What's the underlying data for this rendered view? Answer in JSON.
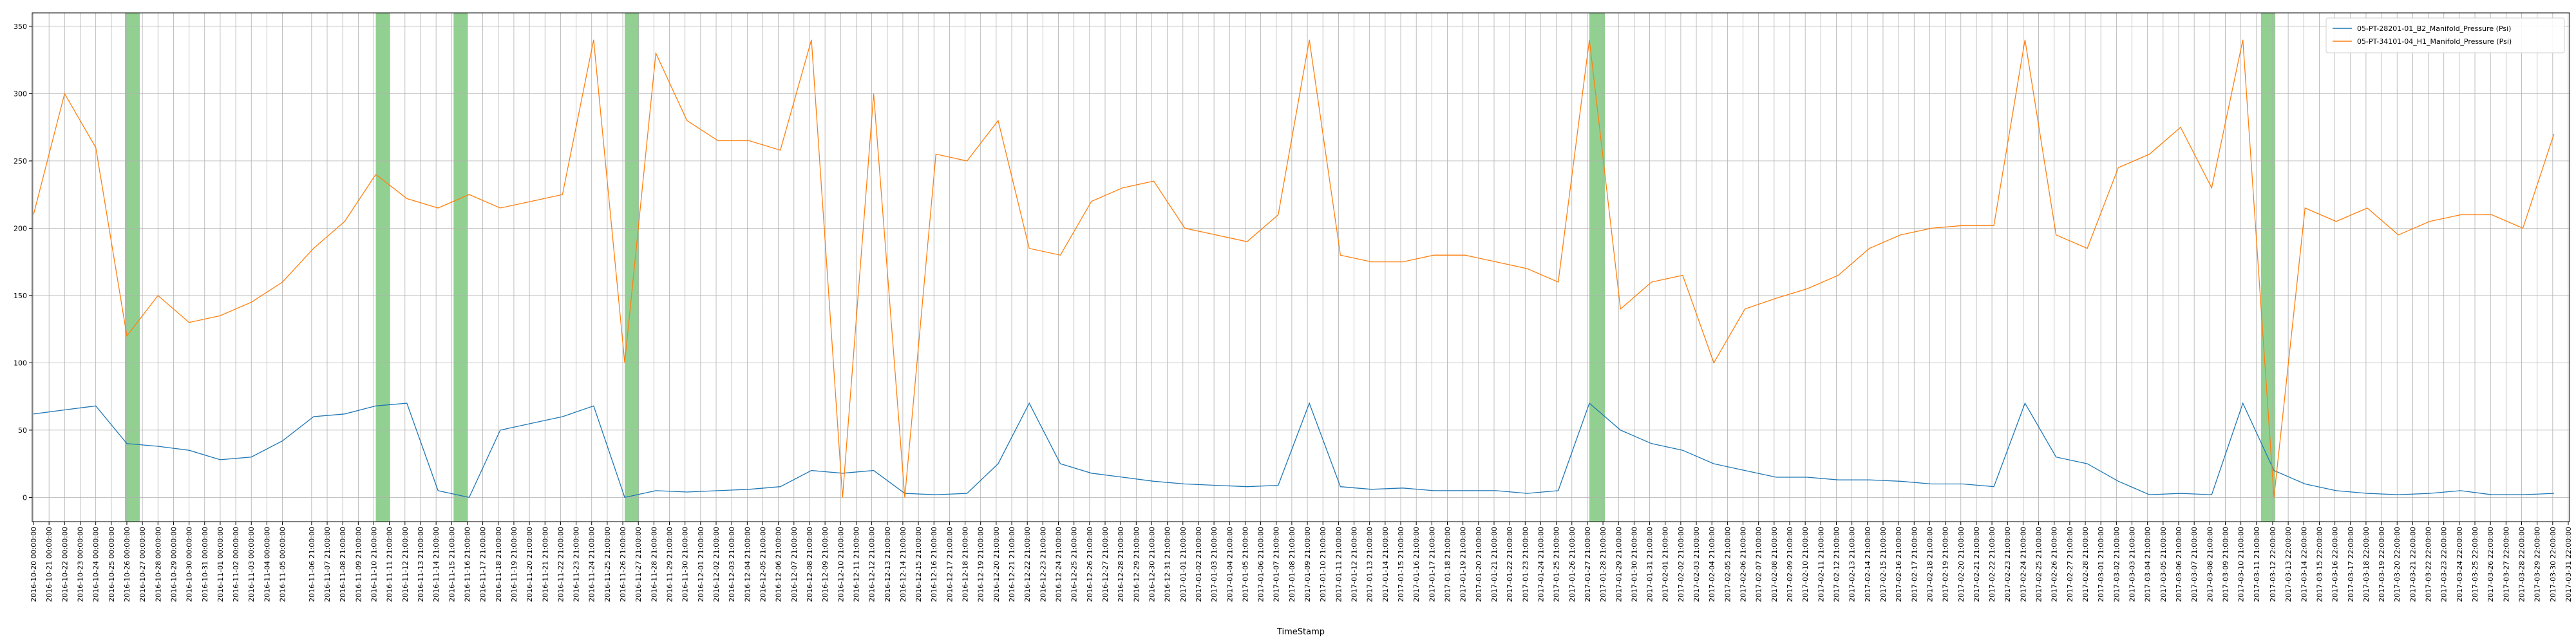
{
  "chart_data": {
    "type": "line",
    "xlabel": "TimeStamp",
    "x": [
      "2016-10-20",
      "2016-10-22",
      "2016-10-24",
      "2016-10-26",
      "2016-10-28",
      "2016-10-30",
      "2016-11-01",
      "2016-11-03",
      "2016-11-05",
      "2016-11-07",
      "2016-11-09",
      "2016-11-11",
      "2016-11-13",
      "2016-11-15",
      "2016-11-17",
      "2016-11-19",
      "2016-11-21",
      "2016-11-23",
      "2016-11-25",
      "2016-11-27",
      "2016-11-29",
      "2016-12-01",
      "2016-12-03",
      "2016-12-05",
      "2016-12-07",
      "2016-12-09",
      "2016-12-11",
      "2016-12-13",
      "2016-12-15",
      "2016-12-17",
      "2016-12-19",
      "2016-12-21",
      "2016-12-23",
      "2016-12-25",
      "2016-12-27",
      "2016-12-29",
      "2016-12-31",
      "2017-01-02",
      "2017-01-04",
      "2017-01-06",
      "2017-01-08",
      "2017-01-10",
      "2017-01-12",
      "2017-01-14",
      "2017-01-16",
      "2017-01-18",
      "2017-01-20",
      "2017-01-22",
      "2017-01-24",
      "2017-01-26",
      "2017-01-28",
      "2017-01-30",
      "2017-02-01",
      "2017-02-03",
      "2017-02-05",
      "2017-02-07",
      "2017-02-09",
      "2017-02-11",
      "2017-02-13",
      "2017-02-15",
      "2017-02-17",
      "2017-02-19",
      "2017-02-21",
      "2017-02-23",
      "2017-02-25",
      "2017-02-27",
      "2017-03-01",
      "2017-03-03",
      "2017-03-05",
      "2017-03-07",
      "2017-03-09",
      "2017-03-11",
      "2017-03-13",
      "2017-03-15",
      "2017-03-17",
      "2017-03-19",
      "2017-03-21",
      "2017-03-23",
      "2017-03-25",
      "2017-03-27",
      "2017-03-29",
      "2017-03-31"
    ],
    "series": [
      {
        "name": "05-PT-28201-01_B2_Manifold_Pressure (Psi)",
        "color": "#1f77b4",
        "values": [
          62,
          65,
          68,
          40,
          38,
          35,
          28,
          30,
          42,
          60,
          62,
          68,
          70,
          5,
          0,
          50,
          55,
          60,
          68,
          0,
          5,
          4,
          5,
          6,
          8,
          20,
          18,
          20,
          3,
          2,
          3,
          25,
          70,
          25,
          18,
          15,
          12,
          10,
          9,
          8,
          9,
          70,
          8,
          6,
          7,
          5,
          5,
          5,
          3,
          5,
          70,
          50,
          40,
          35,
          25,
          20,
          15,
          15,
          13,
          13,
          12,
          10,
          10,
          8,
          70,
          30,
          25,
          12,
          2,
          3,
          2,
          70,
          20,
          10,
          5,
          3,
          2,
          3,
          5,
          2,
          2,
          3
        ]
      },
      {
        "name": "05-PT-34101-04_H1_Manifold_Pressure (Psi)",
        "color": "#ff7f0e",
        "values": [
          210,
          300,
          260,
          120,
          150,
          130,
          135,
          145,
          160,
          185,
          205,
          240,
          222,
          215,
          225,
          215,
          220,
          225,
          340,
          100,
          330,
          280,
          265,
          265,
          258,
          340,
          0,
          300,
          0,
          255,
          250,
          280,
          185,
          180,
          220,
          230,
          235,
          200,
          195,
          190,
          210,
          340,
          180,
          175,
          175,
          180,
          180,
          175,
          170,
          160,
          340,
          140,
          160,
          165,
          100,
          140,
          148,
          155,
          165,
          185,
          195,
          200,
          202,
          202,
          340,
          195,
          185,
          245,
          255,
          275,
          230,
          340,
          0,
          215,
          205,
          215,
          195,
          205,
          210,
          210,
          200,
          270
        ]
      }
    ],
    "spans": [
      [
        "2016-10-25 21:00:00",
        "2016-10-26 20:00:00"
      ],
      [
        "2016-11-11 00:00:00",
        "2016-11-11 22:00:00"
      ],
      [
        "2016-11-16 00:00:00",
        "2016-11-16 22:00:00"
      ],
      [
        "2016-11-27 00:00:00",
        "2016-11-27 22:00:00"
      ],
      [
        "2017-01-28 00:00:00",
        "2017-01-29 00:00:00"
      ],
      [
        "2017-03-12 04:00:00",
        "2017-03-13 02:00:00"
      ]
    ],
    "span_color": "#77c477",
    "xlim": [
      "2016-10-19 22:00:00",
      "2017-04-01 00:00:00"
    ],
    "ylim": [
      -18,
      360
    ],
    "yticks": [
      0,
      50,
      100,
      150,
      200,
      250,
      300,
      350
    ],
    "grid": true,
    "legend": "upper right",
    "xticks": [
      "2016-10-20 00:00:00",
      "2016-10-21 00:00:00",
      "2016-10-22 00:00:00",
      "2016-10-23 00:00:00",
      "2016-10-24 00:00:00",
      "2016-10-25 00:00:00",
      "2016-10-26 00:00:00",
      "2016-10-27 00:00:00",
      "2016-10-28 00:00:00",
      "2016-10-29 00:00:00",
      "2016-10-30 00:00:00",
      "2016-10-31 00:00:00",
      "2016-11-01 00:00:00",
      "2016-11-02 00:00:00",
      "2016-11-03 00:00:00",
      "2016-11-04 00:00:00",
      "2016-11-05 00:00:00",
      "2016-11-06 21:00:00",
      "2016-11-07 21:00:00",
      "2016-11-08 21:00:00",
      "2016-11-09 21:00:00",
      "2016-11-10 21:00:00",
      "2016-11-11 21:00:00",
      "2016-11-12 21:00:00",
      "2016-11-13 21:00:00",
      "2016-11-14 21:00:00",
      "2016-11-15 21:00:00",
      "2016-11-16 21:00:00",
      "2016-11-17 21:00:00",
      "2016-11-18 21:00:00",
      "2016-11-19 21:00:00",
      "2016-11-20 21:00:00",
      "2016-11-21 21:00:00",
      "2016-11-22 21:00:00",
      "2016-11-23 21:00:00",
      "2016-11-24 21:00:00",
      "2016-11-25 21:00:00",
      "2016-11-26 21:00:00",
      "2016-11-27 21:00:00",
      "2016-11-28 21:00:00",
      "2016-11-29 21:00:00",
      "2016-11-30 21:00:00",
      "2016-12-01 21:00:00",
      "2016-12-02 21:00:00",
      "2016-12-03 21:00:00",
      "2016-12-04 21:00:00",
      "2016-12-05 21:00:00",
      "2016-12-06 21:00:00",
      "2016-12-07 21:00:00",
      "2016-12-08 21:00:00",
      "2016-12-09 21:00:00",
      "2016-12-10 21:00:00",
      "2016-12-11 21:00:00",
      "2016-12-12 21:00:00",
      "2016-12-13 21:00:00",
      "2016-12-14 21:00:00",
      "2016-12-15 21:00:00",
      "2016-12-16 21:00:00",
      "2016-12-17 21:00:00",
      "2016-12-18 21:00:00",
      "2016-12-19 21:00:00",
      "2016-12-20 21:00:00",
      "2016-12-21 21:00:00",
      "2016-12-22 21:00:00",
      "2016-12-23 21:00:00",
      "2016-12-24 21:00:00",
      "2016-12-25 21:00:00",
      "2016-12-26 21:00:00",
      "2016-12-27 21:00:00",
      "2016-12-28 21:00:00",
      "2016-12-29 21:00:00",
      "2016-12-30 21:00:00",
      "2016-12-31 21:00:00",
      "2017-01-01 21:00:00",
      "2017-01-02 21:00:00",
      "2017-01-03 21:00:00",
      "2017-01-04 21:00:00",
      "2017-01-05 21:00:00",
      "2017-01-06 21:00:00",
      "2017-01-07 21:00:00",
      "2017-01-08 21:00:00",
      "2017-01-09 21:00:00",
      "2017-01-10 21:00:00",
      "2017-01-11 21:00:00",
      "2017-01-12 21:00:00",
      "2017-01-13 21:00:00",
      "2017-01-14 21:00:00",
      "2017-01-15 21:00:00",
      "2017-01-16 21:00:00",
      "2017-01-17 21:00:00",
      "2017-01-18 21:00:00",
      "2017-01-19 21:00:00",
      "2017-01-20 21:00:00",
      "2017-01-21 21:00:00",
      "2017-01-22 21:00:00",
      "2017-01-23 21:00:00",
      "2017-01-24 21:00:00",
      "2017-01-25 21:00:00",
      "2017-01-26 21:00:00",
      "2017-01-27 21:00:00",
      "2017-01-28 21:00:00",
      "2017-01-29 21:00:00",
      "2017-01-30 21:00:00",
      "2017-01-31 21:00:00",
      "2017-02-01 21:00:00",
      "2017-02-02 21:00:00",
      "2017-02-03 21:00:00",
      "2017-02-04 21:00:00",
      "2017-02-05 21:00:00",
      "2017-02-06 21:00:00",
      "2017-02-07 21:00:00",
      "2017-02-08 21:00:00",
      "2017-02-09 21:00:00",
      "2017-02-10 21:00:00",
      "2017-02-11 21:00:00",
      "2017-02-12 21:00:00",
      "2017-02-13 21:00:00",
      "2017-02-14 21:00:00",
      "2017-02-15 21:00:00",
      "2017-02-16 21:00:00",
      "2017-02-17 21:00:00",
      "2017-02-18 21:00:00",
      "2017-02-19 21:00:00",
      "2017-02-20 21:00:00",
      "2017-02-21 21:00:00",
      "2017-02-22 21:00:00",
      "2017-02-23 21:00:00",
      "2017-02-24 21:00:00",
      "2017-02-25 21:00:00",
      "2017-02-26 21:00:00",
      "2017-02-27 21:00:00",
      "2017-02-28 21:00:00",
      "2017-03-01 21:00:00",
      "2017-03-02 21:00:00",
      "2017-03-03 21:00:00",
      "2017-03-04 21:00:00",
      "2017-03-05 21:00:00",
      "2017-03-06 21:00:00",
      "2017-03-07 21:00:00",
      "2017-03-08 21:00:00",
      "2017-03-09 21:00:00",
      "2017-03-10 21:00:00",
      "2017-03-11 21:00:00",
      "2017-03-12 22:00:00",
      "2017-03-13 22:00:00",
      "2017-03-14 22:00:00",
      "2017-03-15 22:00:00",
      "2017-03-16 22:00:00",
      "2017-03-17 22:00:00",
      "2017-03-18 22:00:00",
      "2017-03-19 22:00:00",
      "2017-03-20 22:00:00",
      "2017-03-21 22:00:00",
      "2017-03-22 22:00:00",
      "2017-03-23 22:00:00",
      "2017-03-24 22:00:00",
      "2017-03-25 22:00:00",
      "2017-03-26 22:00:00",
      "2017-03-27 22:00:00",
      "2017-03-28 22:00:00",
      "2017-03-29 22:00:00",
      "2017-03-30 22:00:00",
      "2017-03-31 22:00:00"
    ]
  }
}
